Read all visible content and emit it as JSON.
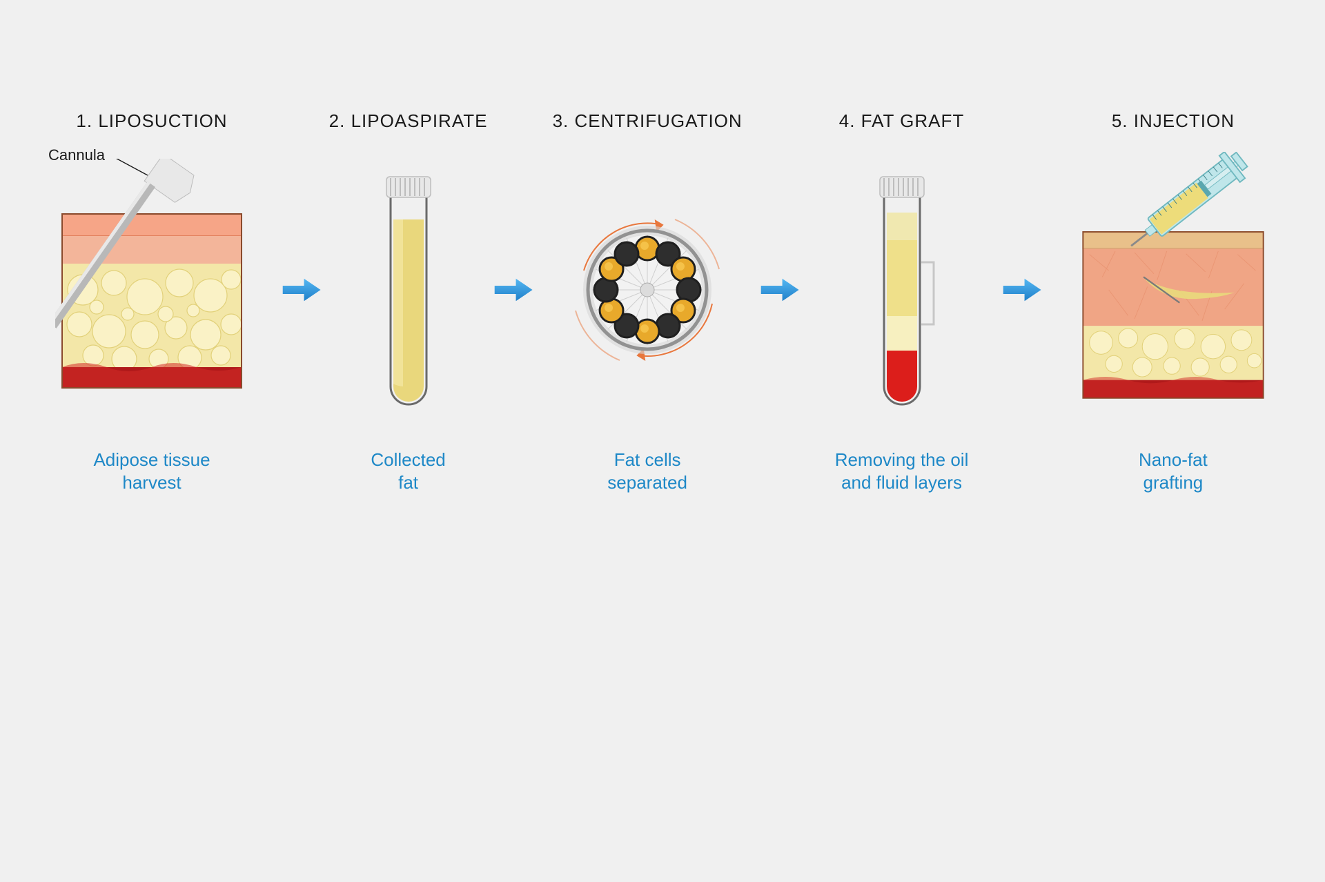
{
  "background_color": "#f0f0f0",
  "caption_color": "#1e88c7",
  "title_color": "#1a1a1a",
  "title_fontsize": 26,
  "caption_fontsize": 26,
  "arrow_color": "#2a97e0",
  "steps": [
    {
      "num": "1.",
      "title": "LIPOSUCTION",
      "caption": "Adipose tissue\nharvest"
    },
    {
      "num": "2.",
      "title": "LIPOASPIRATE",
      "caption": "Collected\nfat"
    },
    {
      "num": "3.",
      "title": "CENTRIFUGATION",
      "caption": "Fat cells\nseparated"
    },
    {
      "num": "4.",
      "title": "FAT GRAFT",
      "caption": "Removing the oil\nand fluid layers"
    },
    {
      "num": "5.",
      "title": "INJECTION",
      "caption": "Nano-fat\ngrafting"
    }
  ],
  "annotations": {
    "cannula": "Cannula"
  },
  "skin_block": {
    "epidermis_color": "#f6a587",
    "epidermis_edge": "#e2805c",
    "dermis_color": "#f3b59a",
    "fat_color": "#f3e7a8",
    "fat_bubble_hi": "#faf2c6",
    "fat_bubble_lo": "#e2d17a",
    "blood_color": "#b0191a",
    "blood_hi": "#d42b28",
    "outline": "#8a4a2c"
  },
  "tube": {
    "glass_edge": "#6a6a6a",
    "cap_color": "#e8e8e8",
    "cap_shadow": "#bdbdbd",
    "collected_fat": "#e9d77c",
    "oil_layer": "#f0e8b0",
    "fat_layer": "#efe08a",
    "fluid_layer": "#f7f0c0",
    "blood_layer": "#d11414"
  },
  "centrifuge": {
    "outer_ring": "#2b2b2b",
    "inner_face": "#f2f2f2",
    "motion_arrow": "#e86a2a",
    "slot_dark": "#2e2e2e",
    "slot_fat": "#e8a92b",
    "slot_fat_hi": "#f7c851",
    "slots": 12,
    "filled_indices": [
      0,
      2,
      4,
      6,
      8,
      10
    ]
  },
  "syringe": {
    "barrel": "#bfe6ea",
    "barrel_edge": "#6fb8bf",
    "plunger": "#d6eef0",
    "fluid": "#eddc7a",
    "needle": "#8a8a8a"
  },
  "cannula": {
    "shaft": "#b8b8b8",
    "shaft_hi": "#e8e8e8",
    "tip": "#e8e8e8"
  }
}
